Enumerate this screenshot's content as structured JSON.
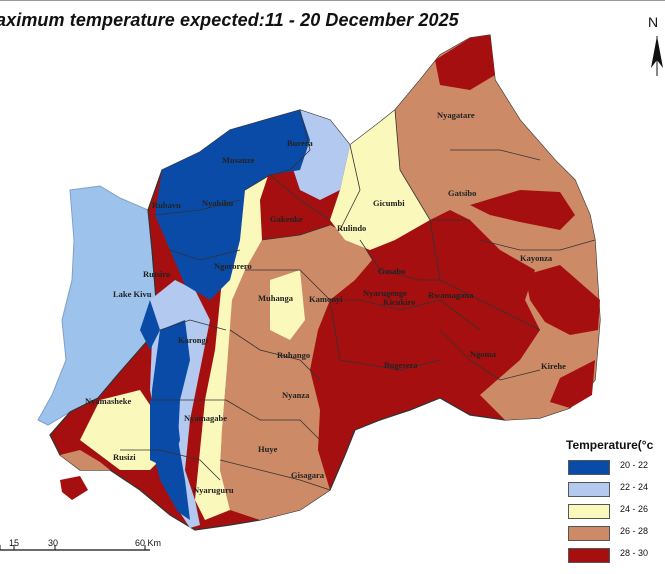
{
  "map": {
    "title": "aximum temperature expected:11 - 20 December 2025",
    "north_label": "N",
    "legend_title": "Temperature(°c",
    "legend": [
      {
        "label": "20 - 22",
        "color": "#0a4ba8"
      },
      {
        "label": "22 - 24",
        "color": "#b3c9f0"
      },
      {
        "label": "24 - 26",
        "color": "#fbf8bc"
      },
      {
        "label": "26 - 28",
        "color": "#cd8a67"
      },
      {
        "label": "28 - 30",
        "color": "#a50f0f"
      }
    ],
    "lake_color": "#9dc3ec",
    "scale": {
      "ticks": [
        "15",
        "30",
        "60 Km"
      ]
    },
    "districts": [
      "Nyagatare",
      "Burera",
      "Musanze",
      "Gatsibo",
      "Gicumbi",
      "Rubavu",
      "Nyabihu",
      "Gakenke",
      "Rulindo",
      "Kayonza",
      "Rutsiro",
      "Ngororero",
      "Gasabo",
      "Lake Kivu",
      "Muhanga",
      "Kamonyi",
      "Nyarugenge",
      "Kicukiro",
      "Rwamagana",
      "Karongi",
      "Ruhango",
      "Ngoma",
      "Bugesera",
      "Kirehe",
      "Nyamasheke",
      "Nyanza",
      "Nyamagabe",
      "Rusizi",
      "Huye",
      "Gisagara",
      "Nyaruguru"
    ]
  }
}
